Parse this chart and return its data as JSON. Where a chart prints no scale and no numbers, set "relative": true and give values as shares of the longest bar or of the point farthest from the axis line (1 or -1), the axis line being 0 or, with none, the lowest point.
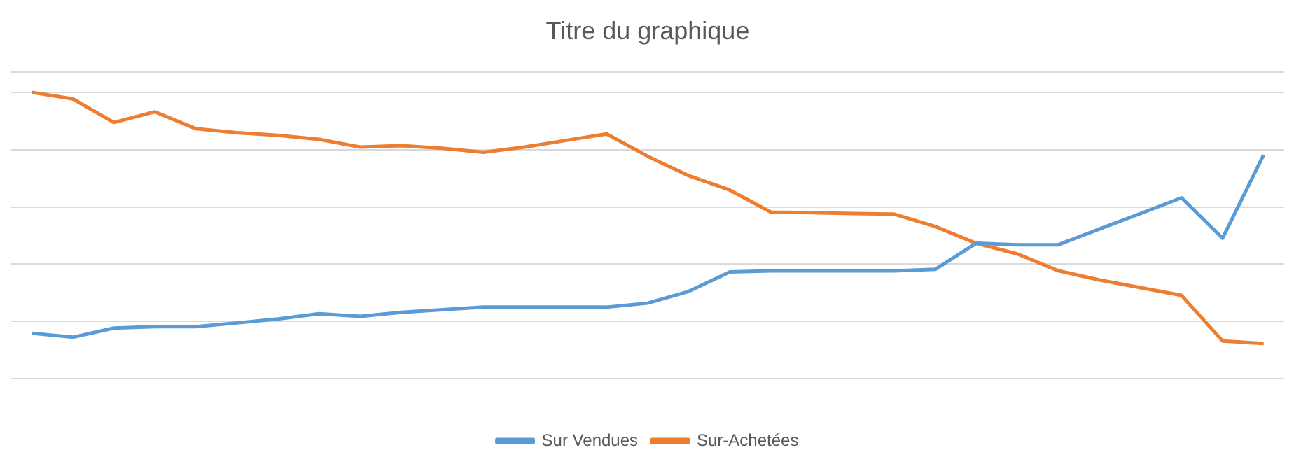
{
  "chart_data": {
    "type": "line",
    "title": "Titre du graphique",
    "relative": true,
    "grid": "y",
    "legend": "bottom",
    "marker": "none",
    "line_style": "solid",
    "categories": [
      null,
      null,
      null,
      null,
      null,
      null,
      null,
      null,
      null,
      null,
      null,
      null,
      null,
      null,
      null,
      null,
      null,
      null,
      null,
      null,
      null,
      null,
      null,
      null,
      null,
      null,
      null,
      null,
      null,
      null,
      null
    ],
    "series": [
      {
        "name": "Sur Vendues",
        "color": "#5b9bd5",
        "values": [
          0.159,
          0.145,
          0.177,
          0.182,
          0.182,
          0.195,
          0.209,
          0.227,
          0.218,
          0.232,
          0.241,
          0.25,
          0.25,
          0.25,
          0.25,
          0.264,
          0.305,
          0.373,
          0.377,
          0.377,
          0.377,
          0.377,
          0.382,
          0.473,
          0.468,
          0.468,
          0.523,
          0.577,
          0.632,
          0.491,
          0.782
        ]
      },
      {
        "name": "Sur-Achetées",
        "color": "#ed7d31",
        "values": [
          1,
          0.977,
          0.895,
          0.932,
          0.873,
          0.859,
          0.85,
          0.836,
          0.809,
          0.814,
          0.805,
          0.791,
          0.809,
          0.832,
          0.855,
          0.777,
          0.709,
          0.659,
          0.582,
          0.58,
          0.577,
          0.575,
          0.532,
          0.473,
          0.436,
          0.377,
          0.345,
          0.318,
          0.291,
          0.132,
          0.123
        ]
      }
    ]
  }
}
